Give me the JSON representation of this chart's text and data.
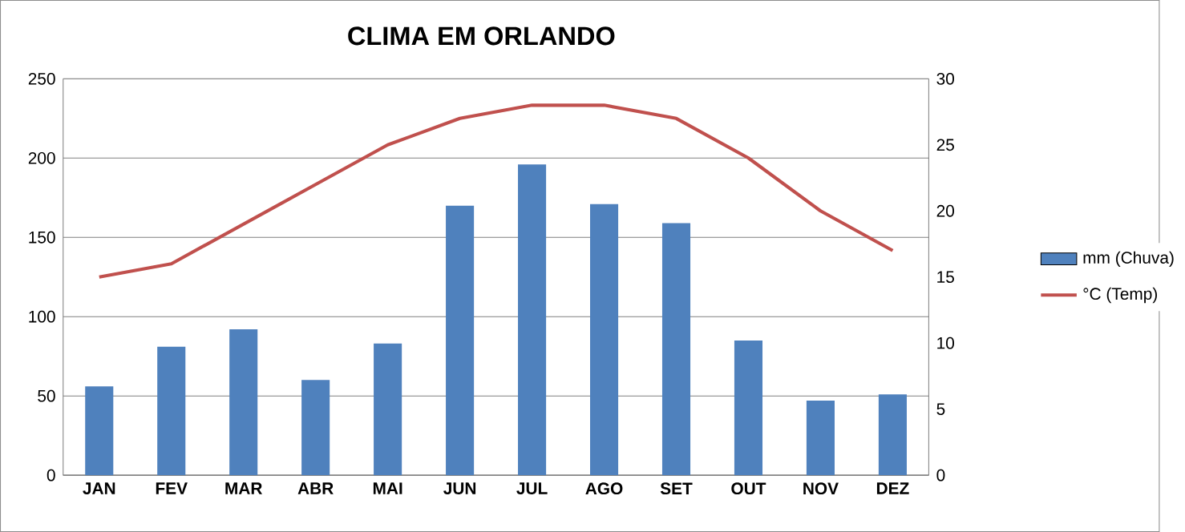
{
  "chart_data": {
    "type": "bar",
    "title": "CLIMA EM ORLANDO",
    "categories": [
      "JAN",
      "FEV",
      "MAR",
      "ABR",
      "MAI",
      "JUN",
      "JUL",
      "AGO",
      "SET",
      "OUT",
      "NOV",
      "DEZ"
    ],
    "series": [
      {
        "name": "mm (Chuva)",
        "color": "#4f81bd",
        "values": [
          56,
          81,
          92,
          60,
          83,
          170,
          196,
          171,
          159,
          85,
          47,
          51
        ]
      },
      {
        "name": "°C (Temp)",
        "type": "line",
        "axis": "y2",
        "color": "#c0504d",
        "values": [
          15,
          16,
          19,
          22,
          25,
          27,
          28,
          28,
          27,
          24,
          20,
          17
        ]
      }
    ],
    "ylim": [
      0,
      250
    ],
    "yticks": [
      0,
      50,
      100,
      150,
      200,
      250
    ],
    "y2lim": [
      0,
      30
    ],
    "y2ticks": [
      0,
      5,
      10,
      15,
      20,
      25,
      30
    ],
    "grid": "y",
    "legend": "right"
  }
}
